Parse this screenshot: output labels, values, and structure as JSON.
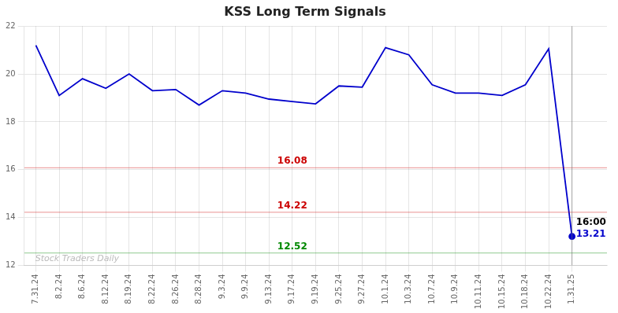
{
  "chart_data": {
    "type": "line",
    "title": "KSS Long Term Signals",
    "categories": [
      "7.31.24",
      "8.2.24",
      "8.6.24",
      "8.12.24",
      "8.19.24",
      "8.22.24",
      "8.26.24",
      "8.28.24",
      "9.3.24",
      "9.9.24",
      "9.13.24",
      "9.17.24",
      "9.19.24",
      "9.25.24",
      "9.27.24",
      "10.1.24",
      "10.3.24",
      "10.7.24",
      "10.9.24",
      "10.11.24",
      "10.15.24",
      "10.18.24",
      "10.22.24",
      "1.31.25"
    ],
    "values": [
      21.2,
      19.1,
      19.8,
      19.4,
      20.0,
      19.3,
      19.35,
      18.7,
      19.3,
      19.2,
      18.95,
      18.85,
      18.75,
      19.5,
      19.45,
      21.1,
      20.8,
      19.55,
      19.2,
      19.2,
      19.1,
      19.55,
      21.05,
      13.21
    ],
    "color": "#0000cc",
    "ylim": [
      12,
      22
    ],
    "yticks": [
      12,
      14,
      16,
      18,
      20,
      22
    ],
    "grid": true,
    "hlines": [
      {
        "value": 16.08,
        "label": "16.08",
        "color": "#cc0000"
      },
      {
        "value": 14.22,
        "label": "14.22",
        "color": "#cc0000"
      },
      {
        "value": 12.52,
        "label": "12.52",
        "color": "#008800"
      }
    ],
    "annotations": [
      {
        "text": "16:00"
      },
      {
        "text": "13.21",
        "color": "#0000cc"
      }
    ],
    "watermark": "Stock Traders Daily"
  }
}
